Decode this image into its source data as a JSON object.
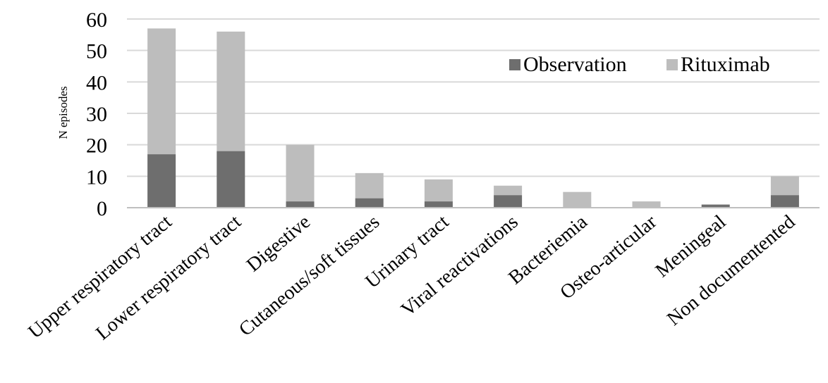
{
  "chart_data": {
    "type": "bar",
    "stacked": true,
    "title": "",
    "xlabel": "",
    "ylabel": "N episodes",
    "ylim": [
      0,
      60
    ],
    "yticks": [
      0,
      10,
      20,
      30,
      40,
      50,
      60
    ],
    "grid": true,
    "legend_position": "top-right",
    "categories": [
      "Upper respiratory tract",
      "Lower respiratory tract",
      "Digestive",
      "Cutaneous/soft tissues",
      "Urinary tract",
      "Viral reactivations",
      "Bacteriemia",
      "Osteo-articular",
      "Meningeal",
      "Non documentented"
    ],
    "series": [
      {
        "name": "Observation",
        "color": "#6e6e6e",
        "values": [
          17,
          18,
          2,
          3,
          2,
          4,
          0,
          0,
          1,
          4
        ]
      },
      {
        "name": "Rituximab",
        "color": "#bdbdbd",
        "values": [
          40,
          38,
          18,
          8,
          7,
          3,
          5,
          2,
          0,
          6
        ]
      }
    ]
  }
}
